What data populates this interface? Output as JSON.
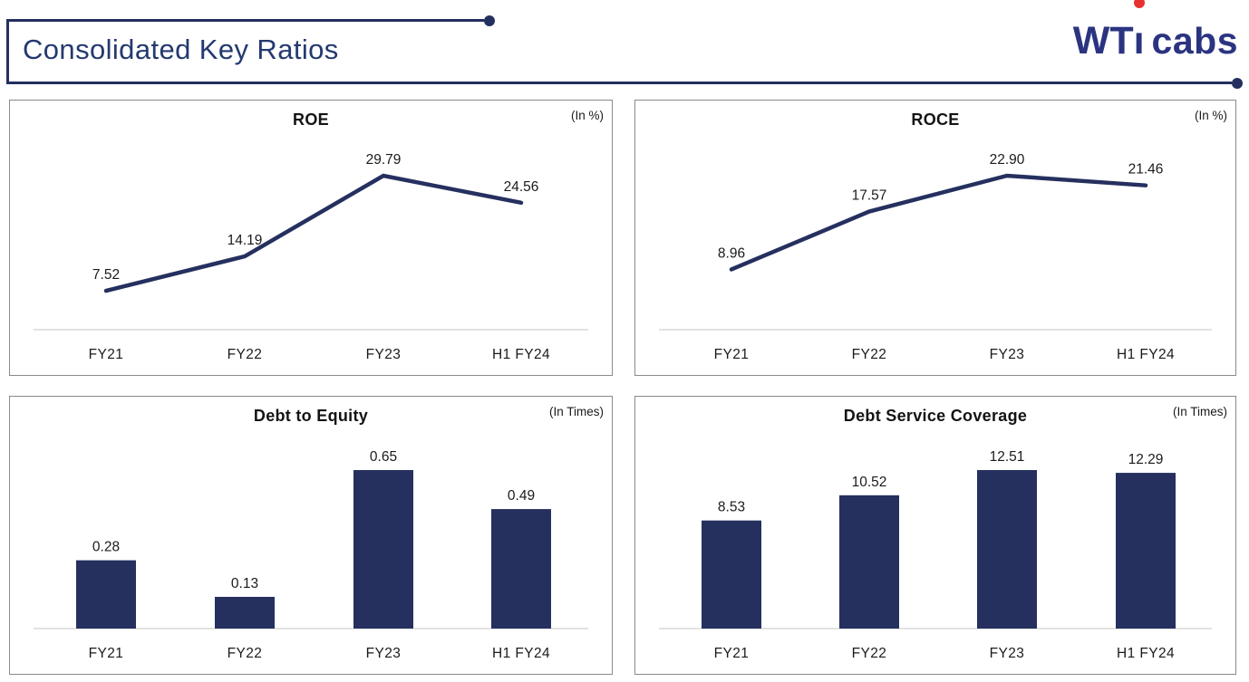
{
  "header": {
    "title": "Consolidated Key Ratios",
    "logo": {
      "wt": "WT",
      "i": "ı",
      "cabs": "cabs"
    }
  },
  "colors": {
    "series_navy": "#25305f",
    "header_navy": "#232f5e",
    "title_navy": "#24396f",
    "logo_navy": "#2b3480",
    "logo_red": "#e8312f",
    "panel_border": "#8a8a8a",
    "axis_gray": "#d9d9d9",
    "label_black": "#1b1b1b"
  },
  "chart_data": [
    {
      "type": "line",
      "title": "ROE",
      "unit": "(In %)",
      "categories": [
        "FY21",
        "FY22",
        "FY23",
        "H1 FY24"
      ],
      "values": [
        7.52,
        14.19,
        29.79,
        24.56
      ],
      "labels": [
        "7.52",
        "14.19",
        "29.79",
        "24.56"
      ],
      "ylim": [
        0,
        35
      ],
      "grid": false,
      "legend": false
    },
    {
      "type": "line",
      "title": "ROCE",
      "unit": "(In %)",
      "categories": [
        "FY21",
        "FY22",
        "FY23",
        "H1 FY24"
      ],
      "values": [
        8.96,
        17.57,
        22.9,
        21.46
      ],
      "labels": [
        "8.96",
        "17.57",
        "22.90",
        "21.46"
      ],
      "ylim": [
        0,
        27
      ],
      "grid": false,
      "legend": false
    },
    {
      "type": "bar",
      "title": "Debt to Equity",
      "unit": "(In Times)",
      "categories": [
        "FY21",
        "FY22",
        "FY23",
        "H1 FY24"
      ],
      "values": [
        0.28,
        0.13,
        0.65,
        0.49
      ],
      "labels": [
        "0.28",
        "0.13",
        "0.65",
        "0.49"
      ],
      "ylim": [
        0,
        0.76
      ],
      "grid": false,
      "legend": false
    },
    {
      "type": "bar",
      "title": "Debt Service Coverage",
      "unit": "(In Times)",
      "categories": [
        "FY21",
        "FY22",
        "FY23",
        "H1 FY24"
      ],
      "values": [
        8.53,
        10.52,
        12.51,
        12.29
      ],
      "labels": [
        "8.53",
        "10.52",
        "12.51",
        "12.29"
      ],
      "ylim": [
        0,
        14.6
      ],
      "grid": false,
      "legend": false
    }
  ]
}
